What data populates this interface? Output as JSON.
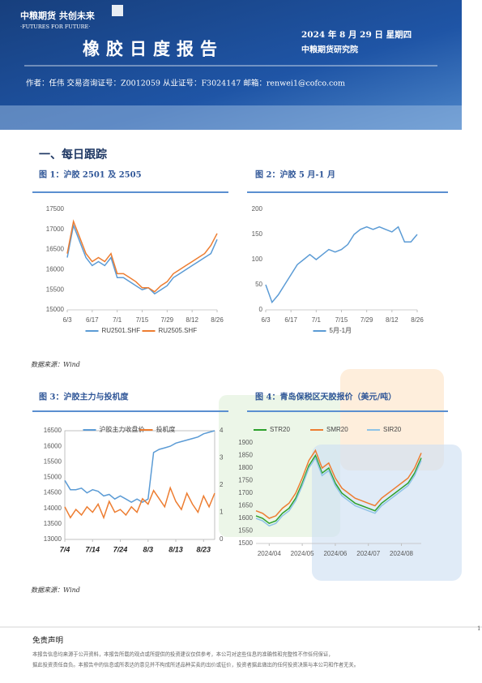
{
  "header": {
    "brand": "中粮期货 共创未来",
    "slogan": "·FUTURES FOR FUTURE·",
    "title": "橡胶日度报告",
    "date": "2024 年 8 月 29 日 星期四",
    "org": "中粮期货研究院",
    "author": "作者：任伟   交易咨询证号：Z0012059   从业证号：F3024147   邮箱：renwei1@cofco.com"
  },
  "section": "一、每日跟踪",
  "chart_data": [
    {
      "type": "line",
      "title": "图 1：沪胶 2501 及 2505",
      "categories": [
        "6/3",
        null,
        null,
        null,
        "6/17",
        null,
        null,
        null,
        "7/1",
        null,
        null,
        null,
        "7/15",
        null,
        null,
        null,
        "7/29",
        null,
        null,
        null,
        "8/12",
        null,
        null,
        null,
        "8/26"
      ],
      "series": [
        {
          "name": "RU2501.SHF",
          "color": "#5b9bd5",
          "values": [
            16300,
            17100,
            16700,
            16300,
            16100,
            16200,
            16100,
            16300,
            15800,
            15800,
            15700,
            15600,
            15500,
            15550,
            15400,
            15500,
            15600,
            15800,
            15900,
            16000,
            16100,
            16200,
            16300,
            16400,
            16750
          ]
        },
        {
          "name": "RU2505.SHF",
          "color": "#ed7d31",
          "values": [
            16400,
            17200,
            16800,
            16400,
            16200,
            16300,
            16200,
            16400,
            15900,
            15900,
            15800,
            15700,
            15550,
            15550,
            15450,
            15600,
            15700,
            15900,
            16000,
            16100,
            16200,
            16300,
            16400,
            16600,
            16900
          ]
        }
      ],
      "ylim": [
        15000,
        17500
      ],
      "yticks": [
        15000,
        15500,
        16000,
        16500,
        17000,
        17500
      ],
      "legend": "bottom",
      "grid": false
    },
    {
      "type": "line",
      "title": "图 2：沪胶 5 月-1 月",
      "categories": [
        "6/3",
        null,
        null,
        null,
        "6/17",
        null,
        null,
        null,
        "7/1",
        null,
        null,
        null,
        "7/15",
        null,
        null,
        null,
        "7/29",
        null,
        null,
        null,
        "8/12",
        null,
        null,
        null,
        "8/26"
      ],
      "series": [
        {
          "name": "5月-1月",
          "color": "#5b9bd5",
          "values": [
            50,
            15,
            30,
            50,
            70,
            90,
            100,
            110,
            100,
            110,
            120,
            115,
            120,
            130,
            150,
            160,
            165,
            160,
            165,
            160,
            155,
            165,
            135,
            135,
            150
          ]
        }
      ],
      "ylim": [
        0,
        200
      ],
      "yticks": [
        0,
        50,
        100,
        150,
        200
      ],
      "legend": "bottom",
      "grid": false
    },
    {
      "type": "line",
      "title": "图 3：沪胶主力与投机度",
      "categories": [
        "7/4",
        null,
        null,
        null,
        null,
        "7/14",
        null,
        null,
        null,
        null,
        "7/24",
        null,
        null,
        null,
        null,
        "8/3",
        null,
        null,
        null,
        null,
        "8/13",
        null,
        null,
        null,
        null,
        "8/23",
        null,
        null
      ],
      "series": [
        {
          "name": "沪胶主力收盘价",
          "color": "#5b9bd5",
          "values": [
            14900,
            14600,
            14600,
            14650,
            14500,
            14600,
            14550,
            14400,
            14450,
            14300,
            14400,
            14300,
            14200,
            14300,
            14200,
            14300,
            15800,
            15900,
            15950,
            16000,
            16100,
            16150,
            16200,
            16250,
            16300,
            16400,
            16450,
            16500
          ]
        },
        {
          "name": "投机度",
          "color": "#ed7d31",
          "axis": "y2",
          "values": [
            1.2,
            0.8,
            1.1,
            0.9,
            1.2,
            1.0,
            1.3,
            0.8,
            1.4,
            1.0,
            1.1,
            0.9,
            1.2,
            1.0,
            1.5,
            1.3,
            1.8,
            1.5,
            1.2,
            1.9,
            1.4,
            1.1,
            1.7,
            1.3,
            1.0,
            1.6,
            1.2,
            1.7
          ]
        }
      ],
      "ylim": [
        13000,
        16500
      ],
      "yticks": [
        13000,
        13500,
        14000,
        14500,
        15000,
        15500,
        16000,
        16500
      ],
      "y2lim": [
        0,
        4
      ],
      "y2ticks": [
        0,
        1,
        2,
        3,
        4
      ],
      "legend": "top",
      "grid": false
    },
    {
      "type": "line",
      "title": "图 4：青岛保税区天胶报价（美元/吨）",
      "categories": [
        null,
        null,
        "2024/04",
        null,
        null,
        null,
        null,
        "2024/05",
        null,
        null,
        null,
        null,
        "2024/06",
        null,
        null,
        null,
        null,
        "2024/07",
        null,
        null,
        null,
        null,
        "2024/08",
        null,
        null,
        null
      ],
      "series": [
        {
          "name": "STR20",
          "color": "#2ca02c",
          "values": [
            1610,
            1600,
            1580,
            1590,
            1620,
            1640,
            1680,
            1740,
            1810,
            1850,
            1780,
            1800,
            1740,
            1700,
            1680,
            1660,
            1650,
            1640,
            1630,
            1660,
            1680,
            1700,
            1720,
            1740,
            1780,
            1840
          ]
        },
        {
          "name": "SMR20",
          "color": "#ed7d31",
          "values": [
            1630,
            1620,
            1600,
            1610,
            1640,
            1660,
            1700,
            1760,
            1830,
            1870,
            1800,
            1820,
            1760,
            1720,
            1700,
            1680,
            1670,
            1660,
            1650,
            1680,
            1700,
            1720,
            1740,
            1760,
            1800,
            1860
          ]
        },
        {
          "name": "SIR20",
          "color": "#8fc3e6",
          "values": [
            1600,
            1590,
            1570,
            1580,
            1610,
            1630,
            1670,
            1730,
            1800,
            1840,
            1770,
            1790,
            1730,
            1690,
            1670,
            1650,
            1640,
            1630,
            1620,
            1650,
            1670,
            1690,
            1710,
            1730,
            1770,
            1830
          ]
        }
      ],
      "ylim": [
        1500,
        1900
      ],
      "yticks": [
        1500,
        1550,
        1600,
        1650,
        1700,
        1750,
        1800,
        1850,
        1900
      ],
      "legend": "top",
      "grid": false
    }
  ],
  "sources": [
    "数据来源：Wind",
    "数据来源：Wind"
  ],
  "disclaimer": {
    "title": "免责声明",
    "lines": [
      "本报告信息均来源于公开资料，本报告所载的观点或所提供的投资建议仅供参考，本公司对这些信息的准确性和完整性不作任何保证，",
      "据此投资责任自负。本报告中的信息或所表达的意见并不构成所述品种买卖的出价或征价，投资者据此做出的任何投资决策与本公司和作者无关。"
    ]
  },
  "page_number": "1"
}
